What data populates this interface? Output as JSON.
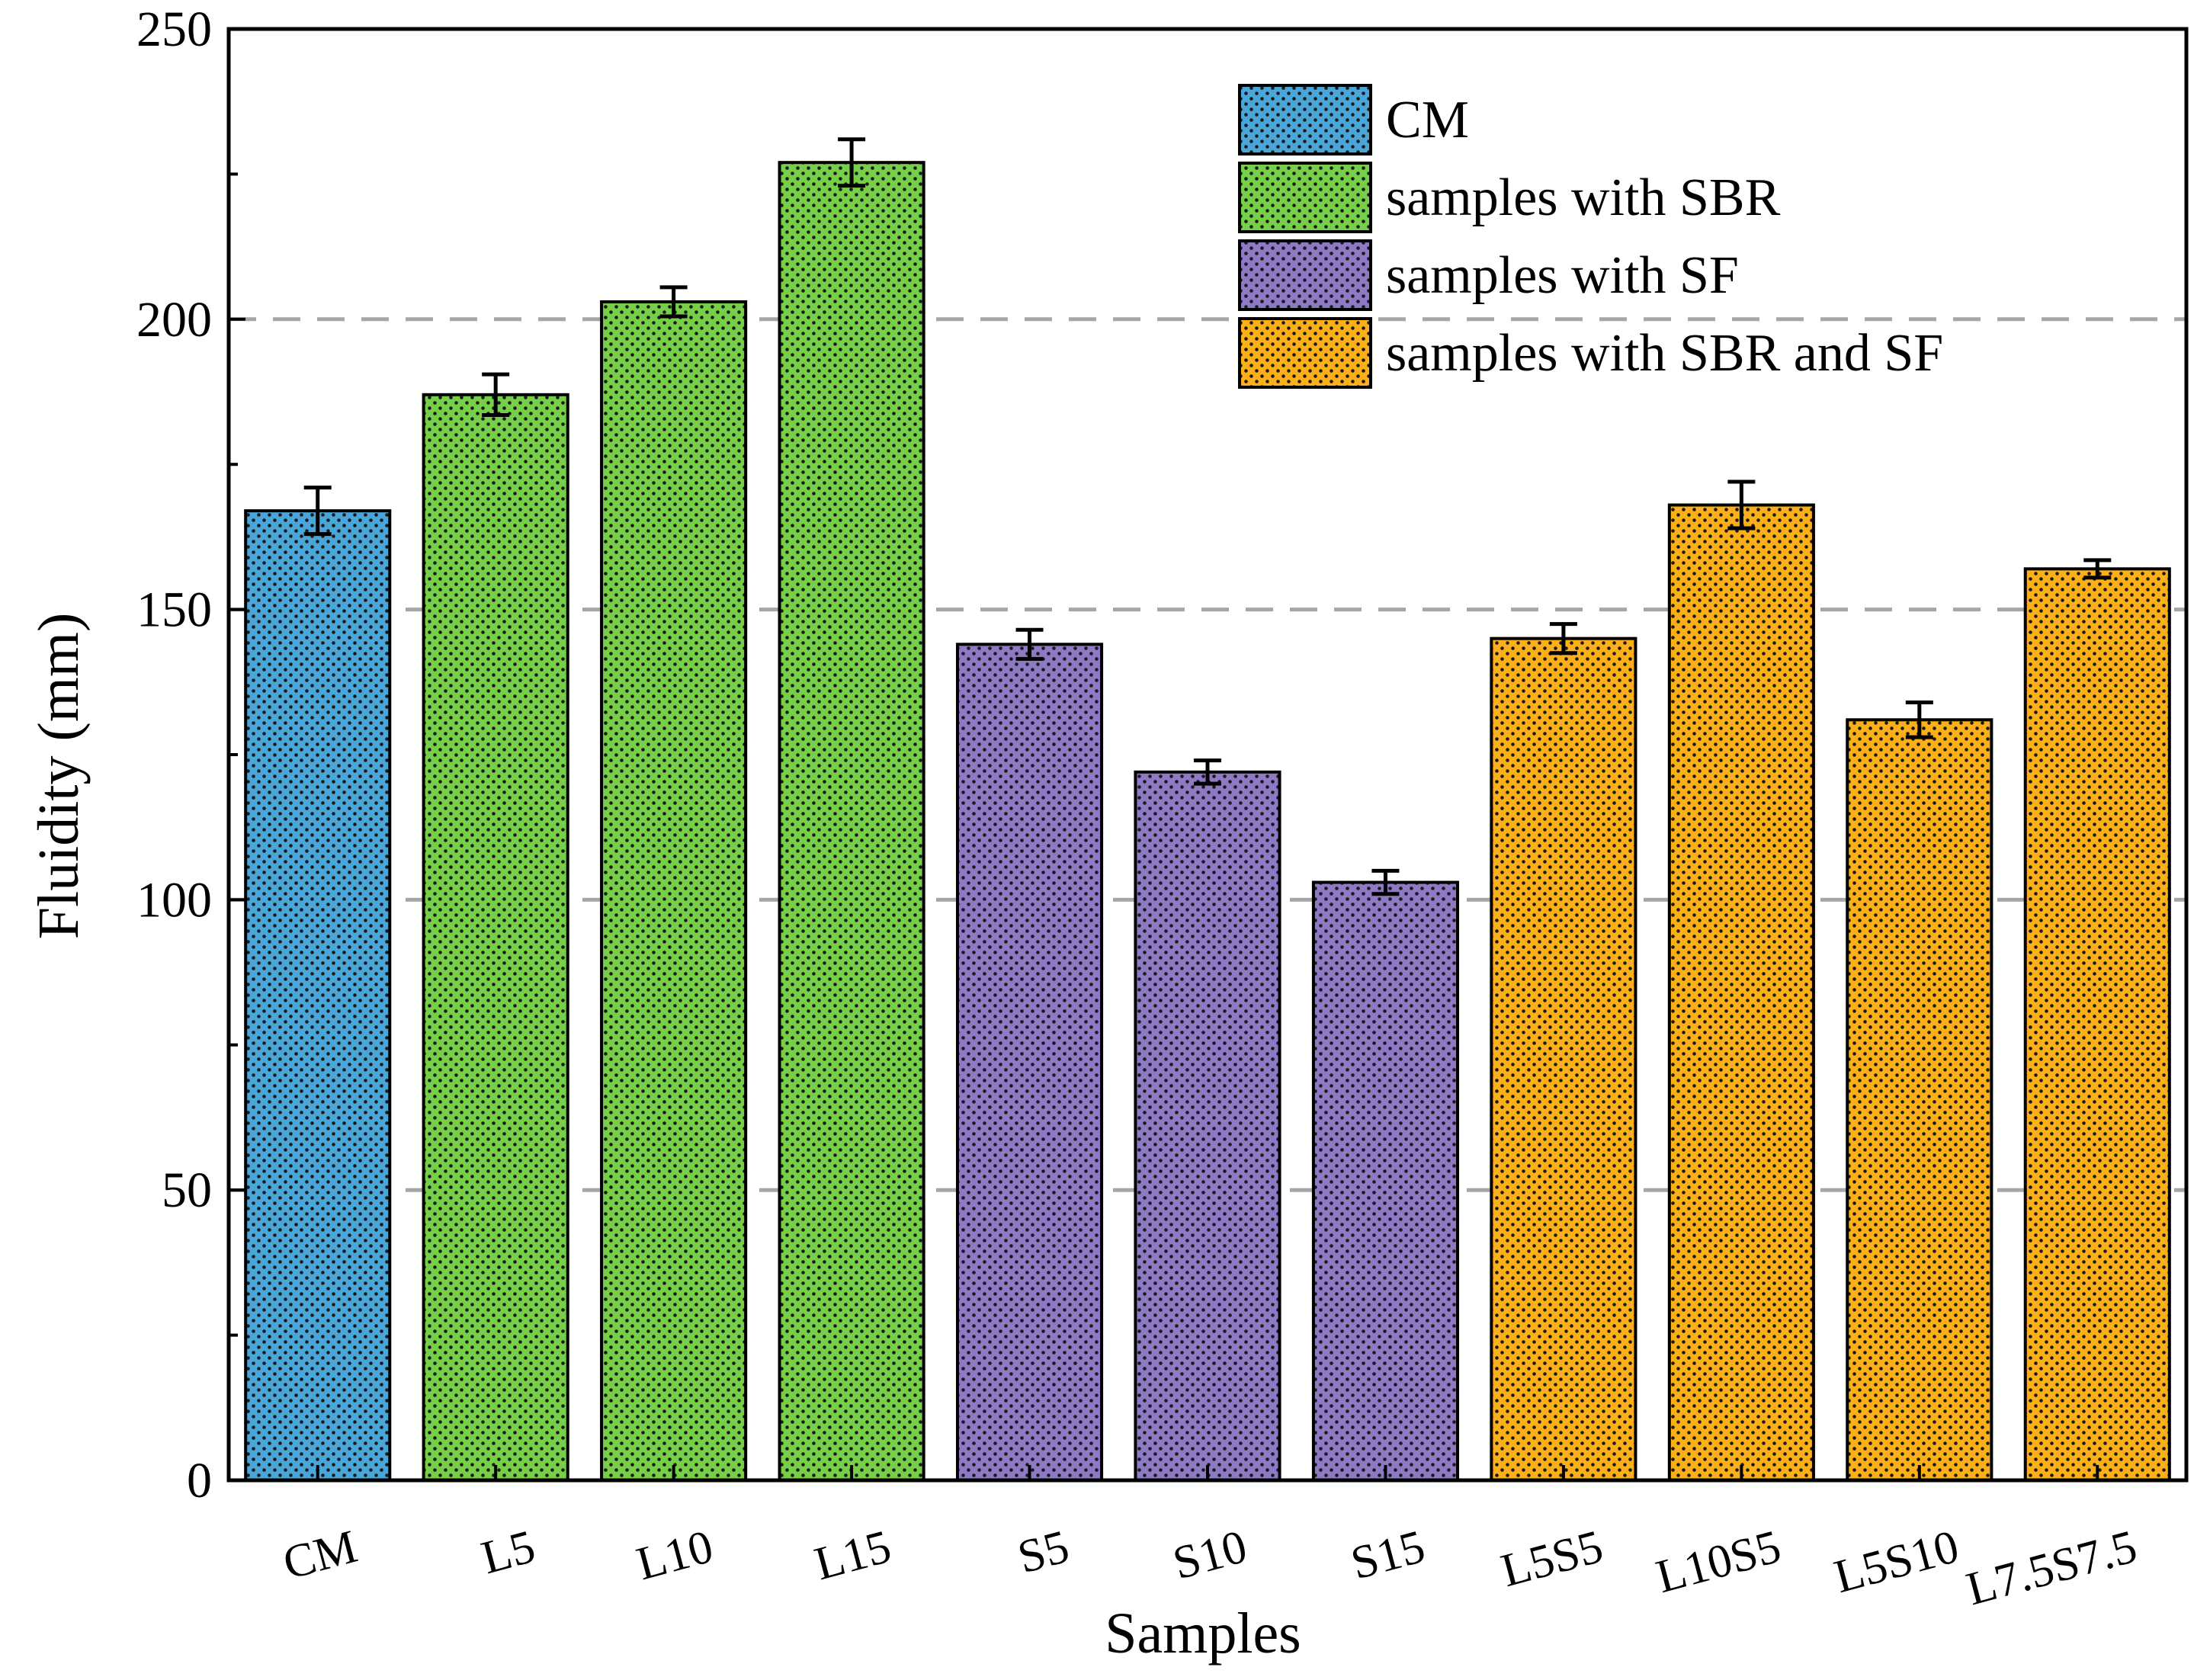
{
  "chart_data": {
    "type": "bar",
    "xlabel": "Samples",
    "ylabel": "Fluidity (mm)",
    "ylim": [
      0,
      250
    ],
    "yticks": [
      0,
      50,
      100,
      150,
      200,
      250
    ],
    "gridlines": [
      50,
      100,
      150,
      200
    ],
    "categories": [
      "CM",
      "L5",
      "L10",
      "L15",
      "S5",
      "S10",
      "S15",
      "L5S5",
      "L10S5",
      "L5S10",
      "L7.5S7.5"
    ],
    "values": [
      167,
      187,
      203,
      227,
      144,
      122,
      103,
      145,
      168,
      131,
      157
    ],
    "errors": [
      4,
      3.5,
      2.5,
      4,
      2.5,
      2,
      2,
      2.5,
      4,
      3,
      1.5
    ],
    "groups": [
      "CM",
      "SBR",
      "SBR",
      "SBR",
      "SF",
      "SF",
      "SF",
      "SBRSF",
      "SBRSF",
      "SBRSF",
      "SBRSF"
    ],
    "legend": [
      {
        "key": "CM",
        "label": "CM",
        "color": "#4aa6d9"
      },
      {
        "key": "SBR",
        "label": "samples with SBR",
        "color": "#76cf48"
      },
      {
        "key": "SF",
        "label": "samples with SF",
        "color": "#8e79c4"
      },
      {
        "key": "SBRSF",
        "label": "samples with SBR and SF",
        "color": "#fbb01a"
      }
    ],
    "legend_position": "top-right"
  }
}
